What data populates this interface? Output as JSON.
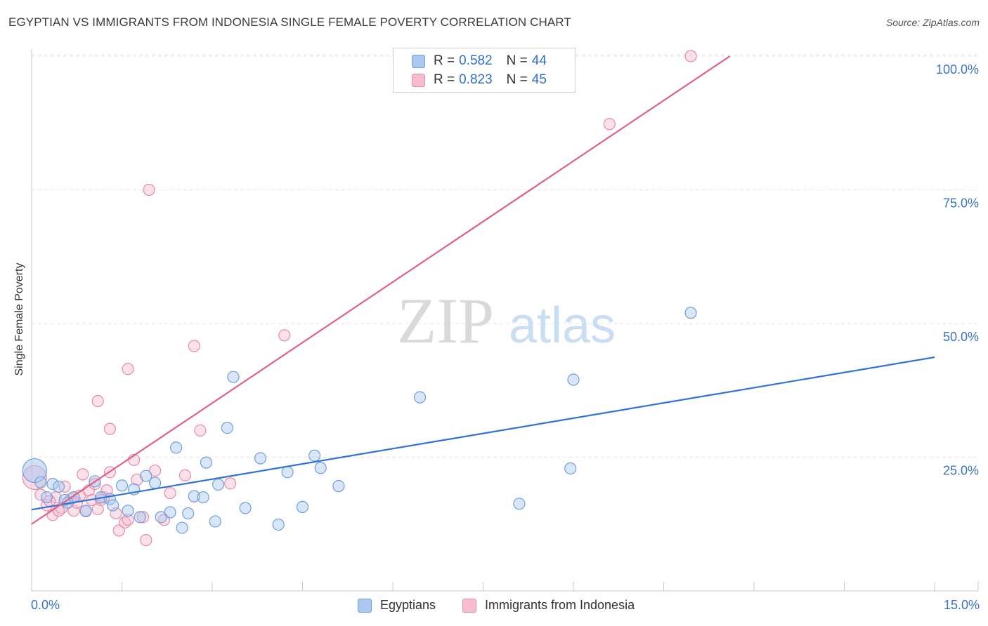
{
  "title": "EGYPTIAN VS IMMIGRANTS FROM INDONESIA SINGLE FEMALE POVERTY CORRELATION CHART",
  "source": "Source: ZipAtlas.com",
  "watermark": {
    "zip": "ZIP",
    "atlas": "atlas"
  },
  "legend": {
    "egyptians": {
      "r_label": "R =",
      "r_value": "0.582",
      "n_label": "N =",
      "n_value": "44"
    },
    "indonesia": {
      "r_label": "R =",
      "r_value": "0.823",
      "n_label": "N =",
      "n_value": "45"
    }
  },
  "colors": {
    "blue_fill": "#aac8f0",
    "blue_stroke": "#6f9fdf",
    "blue_line": "#2f74d0",
    "pink_fill": "#f6bcd0",
    "pink_stroke": "#e88aa8",
    "pink_line": "#e0608a",
    "axis_text": "#3a72c8"
  },
  "chart_data": {
    "type": "scatter",
    "title": "EGYPTIAN VS IMMIGRANTS FROM INDONESIA SINGLE FEMALE POVERTY CORRELATION CHART",
    "xlabel": "",
    "ylabel": "Single Female Poverty",
    "xlim": [
      0,
      15
    ],
    "ylim": [
      0,
      102
    ],
    "x_tick_labels": [
      "0.0%",
      "15.0%"
    ],
    "y_ticks": [
      25,
      50,
      75,
      100
    ],
    "y_tick_labels": [
      "25.0%",
      "50.0%",
      "75.0%",
      "100.0%"
    ],
    "grid": true,
    "series": [
      {
        "name": "Egyptians",
        "color": "blue",
        "trend": {
          "x0": 0,
          "y0": 15.2,
          "x1": 15,
          "y1": 43.7
        },
        "points": [
          {
            "x": 0.05,
            "y": 22.5,
            "big": true
          },
          {
            "x": 0.15,
            "y": 20.3
          },
          {
            "x": 0.25,
            "y": 17.5
          },
          {
            "x": 0.35,
            "y": 20.0
          },
          {
            "x": 0.45,
            "y": 19.5
          },
          {
            "x": 0.55,
            "y": 17.0
          },
          {
            "x": 0.7,
            "y": 17.5
          },
          {
            "x": 0.9,
            "y": 15.0
          },
          {
            "x": 1.05,
            "y": 20.5
          },
          {
            "x": 1.15,
            "y": 17.5
          },
          {
            "x": 1.3,
            "y": 17.2
          },
          {
            "x": 1.35,
            "y": 16.0
          },
          {
            "x": 1.5,
            "y": 19.7
          },
          {
            "x": 1.6,
            "y": 15.0
          },
          {
            "x": 1.7,
            "y": 19.0
          },
          {
            "x": 1.8,
            "y": 13.8
          },
          {
            "x": 1.9,
            "y": 21.5
          },
          {
            "x": 2.05,
            "y": 20.2
          },
          {
            "x": 2.15,
            "y": 13.8
          },
          {
            "x": 2.3,
            "y": 14.7
          },
          {
            "x": 2.4,
            "y": 26.8
          },
          {
            "x": 2.5,
            "y": 11.8
          },
          {
            "x": 2.6,
            "y": 14.5
          },
          {
            "x": 2.7,
            "y": 17.7
          },
          {
            "x": 2.85,
            "y": 17.5
          },
          {
            "x": 2.9,
            "y": 24.0
          },
          {
            "x": 3.05,
            "y": 13.0
          },
          {
            "x": 3.1,
            "y": 19.9
          },
          {
            "x": 3.25,
            "y": 30.5
          },
          {
            "x": 3.35,
            "y": 40.0
          },
          {
            "x": 3.55,
            "y": 15.5
          },
          {
            "x": 3.8,
            "y": 24.8
          },
          {
            "x": 4.1,
            "y": 12.4
          },
          {
            "x": 4.25,
            "y": 22.2
          },
          {
            "x": 4.5,
            "y": 15.7
          },
          {
            "x": 4.7,
            "y": 25.3
          },
          {
            "x": 4.8,
            "y": 23.0
          },
          {
            "x": 5.1,
            "y": 19.6
          },
          {
            "x": 6.45,
            "y": 36.2
          },
          {
            "x": 8.1,
            "y": 16.3
          },
          {
            "x": 8.95,
            "y": 22.9
          },
          {
            "x": 9.0,
            "y": 39.5
          },
          {
            "x": 10.95,
            "y": 52.0
          },
          {
            "x": 0.6,
            "y": 16.5
          }
        ]
      },
      {
        "name": "Immigrants from Indonesia",
        "color": "pink",
        "trend": {
          "x0": 0,
          "y0": 12.5,
          "x1": 11.6,
          "y1": 100.0
        },
        "points": [
          {
            "x": 0.05,
            "y": 21.2,
            "big": true
          },
          {
            "x": 0.15,
            "y": 18.0
          },
          {
            "x": 0.25,
            "y": 16.0
          },
          {
            "x": 0.35,
            "y": 14.2
          },
          {
            "x": 0.4,
            "y": 17.5
          },
          {
            "x": 0.5,
            "y": 15.5
          },
          {
            "x": 0.55,
            "y": 19.5
          },
          {
            "x": 0.65,
            "y": 17.2
          },
          {
            "x": 0.7,
            "y": 15.0
          },
          {
            "x": 0.8,
            "y": 17.8
          },
          {
            "x": 0.85,
            "y": 21.8
          },
          {
            "x": 0.95,
            "y": 18.8
          },
          {
            "x": 1.0,
            "y": 17.0
          },
          {
            "x": 1.05,
            "y": 20.0
          },
          {
            "x": 1.1,
            "y": 15.3
          },
          {
            "x": 1.1,
            "y": 35.5
          },
          {
            "x": 1.2,
            "y": 17.5
          },
          {
            "x": 1.25,
            "y": 18.8
          },
          {
            "x": 1.3,
            "y": 22.2
          },
          {
            "x": 1.3,
            "y": 30.3
          },
          {
            "x": 1.4,
            "y": 14.5
          },
          {
            "x": 1.45,
            "y": 11.3
          },
          {
            "x": 1.55,
            "y": 12.8
          },
          {
            "x": 1.6,
            "y": 13.3
          },
          {
            "x": 1.6,
            "y": 41.5
          },
          {
            "x": 1.7,
            "y": 24.5
          },
          {
            "x": 1.75,
            "y": 20.8
          },
          {
            "x": 1.85,
            "y": 13.8
          },
          {
            "x": 1.9,
            "y": 9.5
          },
          {
            "x": 1.95,
            "y": 75.0
          },
          {
            "x": 2.05,
            "y": 22.5
          },
          {
            "x": 2.2,
            "y": 13.3
          },
          {
            "x": 2.3,
            "y": 18.3
          },
          {
            "x": 2.55,
            "y": 21.6
          },
          {
            "x": 2.7,
            "y": 45.8
          },
          {
            "x": 2.8,
            "y": 30.0
          },
          {
            "x": 3.3,
            "y": 20.1
          },
          {
            "x": 4.2,
            "y": 47.8
          },
          {
            "x": 9.6,
            "y": 87.3
          },
          {
            "x": 10.95,
            "y": 100.0
          },
          {
            "x": 0.3,
            "y": 16.8
          },
          {
            "x": 0.45,
            "y": 15.0
          },
          {
            "x": 0.9,
            "y": 14.9
          },
          {
            "x": 0.75,
            "y": 16.5
          },
          {
            "x": 1.15,
            "y": 17.0
          }
        ]
      }
    ]
  },
  "bottom_legend": {
    "egyptians": "Egyptians",
    "indonesia": "Immigrants from Indonesia"
  }
}
